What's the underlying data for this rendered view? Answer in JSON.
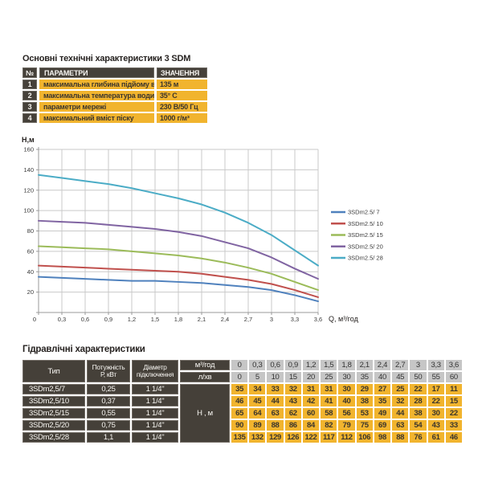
{
  "colors": {
    "gold": "#F1B42E",
    "dark_cell": "#454039",
    "gray_cell": "#C6C6C6",
    "text_on_gold": "#3B352C",
    "grid_line": "#C9C9C9",
    "axis_line": "#9A9A9A"
  },
  "spec_section": {
    "title": "Основні технічні характеристики 3 SDM",
    "table": {
      "headers": {
        "num": "№",
        "param": "ПАРАМЕТРИ",
        "value": "ЗНАЧЕННЯ"
      },
      "rows": [
        {
          "num": "1",
          "param": "максимальна глибина підйому води",
          "value": "135 м"
        },
        {
          "num": "2",
          "param": "максимальна температура води",
          "value": "35° С"
        },
        {
          "num": "3",
          "param": "параметри мережі",
          "value": "230 В/50 Гц"
        },
        {
          "num": "4",
          "param": "максимальний вміст піску",
          "value": "1000 г/м³"
        }
      ]
    }
  },
  "chart_data": {
    "type": "line",
    "title": "",
    "xlabel": "Q, м³/год",
    "ylabel": "Н,м",
    "xlim": [
      0,
      3.6
    ],
    "ylim": [
      0,
      160
    ],
    "grid": true,
    "legend_position": "right",
    "x": [
      0,
      0.3,
      0.6,
      0.9,
      1.2,
      1.5,
      1.8,
      2.1,
      2.4,
      2.7,
      3,
      3.3,
      3.6
    ],
    "x_tick_labels": [
      "0",
      "0,3",
      "0,6",
      "0,9",
      "1,2",
      "1,5",
      "1,8",
      "2,1",
      "2,4",
      "2,7",
      "3",
      "3,3",
      "3,6"
    ],
    "y_ticks": [
      0,
      20,
      40,
      60,
      80,
      100,
      120,
      140,
      160
    ],
    "series": [
      {
        "name": "3SDm2.5/ 7",
        "color": "#4F81BD",
        "values": [
          35,
          34,
          33,
          32,
          31,
          31,
          30,
          29,
          27,
          25,
          22,
          17,
          11
        ]
      },
      {
        "name": "3SDm2.5/ 10",
        "color": "#C0504D",
        "values": [
          46,
          45,
          44,
          43,
          42,
          41,
          40,
          38,
          35,
          32,
          28,
          22,
          15
        ]
      },
      {
        "name": "3SDm2.5/ 15",
        "color": "#9BBB59",
        "values": [
          65,
          64,
          63,
          62,
          60,
          58,
          56,
          53,
          49,
          44,
          38,
          30,
          22
        ]
      },
      {
        "name": "3SDm2.5/ 20",
        "color": "#8064A2",
        "values": [
          90,
          89,
          88,
          86,
          84,
          82,
          79,
          75,
          69,
          63,
          54,
          43,
          33
        ]
      },
      {
        "name": "3SDm2.5/ 28",
        "color": "#4BACC6",
        "values": [
          135,
          132,
          129,
          126,
          122,
          117,
          112,
          106,
          98,
          88,
          76,
          61,
          46
        ]
      }
    ]
  },
  "hydraulic_section": {
    "title": "Гідравлічні характеристики",
    "table": {
      "col_headers": {
        "type": "Тип",
        "power": "Потужність\nР, кВт",
        "diameter": "Діаметр\nпідключення",
        "flow_m3h": "м³/год",
        "flow_lmin": "л/хв",
        "head": "Н , м"
      },
      "flow_m3h_values": [
        "0",
        "0,3",
        "0,6",
        "0,9",
        "1,2",
        "1,5",
        "1,8",
        "2,1",
        "2,4",
        "2,7",
        "3",
        "3,3",
        "3,6"
      ],
      "flow_lmin_values": [
        "0",
        "5",
        "10",
        "15",
        "20",
        "25",
        "30",
        "35",
        "40",
        "45",
        "50",
        "55",
        "60"
      ],
      "rows": [
        {
          "type": "3SDm2,5/7",
          "power": "0,25",
          "diameter": "1 1/4\"",
          "head_values": [
            "35",
            "34",
            "33",
            "32",
            "31",
            "31",
            "30",
            "29",
            "27",
            "25",
            "22",
            "17",
            "11"
          ]
        },
        {
          "type": "3SDm2,5/10",
          "power": "0,37",
          "diameter": "1 1/4\"",
          "head_values": [
            "46",
            "45",
            "44",
            "43",
            "42",
            "41",
            "40",
            "38",
            "35",
            "32",
            "28",
            "22",
            "15"
          ]
        },
        {
          "type": "3SDm2,5/15",
          "power": "0,55",
          "diameter": "1 1/4\"",
          "head_values": [
            "65",
            "64",
            "63",
            "62",
            "60",
            "58",
            "56",
            "53",
            "49",
            "44",
            "38",
            "30",
            "22"
          ]
        },
        {
          "type": "3SDm2,5/20",
          "power": "0,75",
          "diameter": "1 1/4\"",
          "head_values": [
            "90",
            "89",
            "88",
            "86",
            "84",
            "82",
            "79",
            "75",
            "69",
            "63",
            "54",
            "43",
            "33"
          ]
        },
        {
          "type": "3SDm2,5/28",
          "power": "1,1",
          "diameter": "1 1/4\"",
          "head_values": [
            "135",
            "132",
            "129",
            "126",
            "122",
            "117",
            "112",
            "106",
            "98",
            "88",
            "76",
            "61",
            "46"
          ]
        }
      ]
    }
  }
}
